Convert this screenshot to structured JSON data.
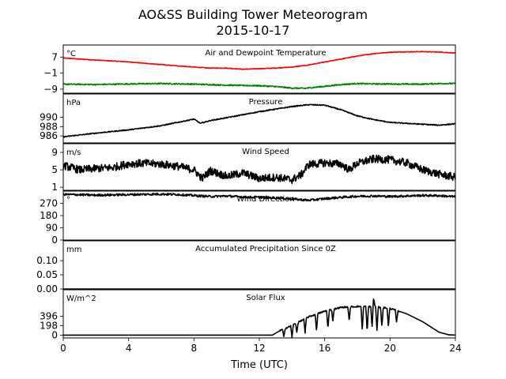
{
  "chart": {
    "title_line1": "AO&SS Building Tower Meteorogram",
    "title_line2": "2015-10-17",
    "xlabel": "Time (UTC)"
  },
  "chart_data": {
    "type": "line",
    "x_range": [
      0,
      24
    ],
    "x_ticks": [
      0,
      4,
      8,
      12,
      16,
      20,
      24
    ],
    "xlabel": "Time (UTC)",
    "panels": [
      {
        "id": "temperature",
        "title": "Air and Dewpoint Temperature",
        "unit": "°C",
        "ylim": [
          -11,
          13
        ],
        "ticks": [
          -9,
          -1,
          7
        ],
        "series": [
          {
            "key": "air",
            "color": "#ff0000",
            "noise": 0.15,
            "points": [
              [
                0,
                6.5
              ],
              [
                2,
                5.5
              ],
              [
                4,
                4.6
              ],
              [
                6,
                3.2
              ],
              [
                8,
                2
              ],
              [
                9,
                1.5
              ],
              [
                10,
                1.5
              ],
              [
                11,
                0.9
              ],
              [
                12,
                1.2
              ],
              [
                13,
                1.5
              ],
              [
                14,
                2
              ],
              [
                15,
                3
              ],
              [
                16,
                4.5
              ],
              [
                17,
                6
              ],
              [
                18,
                7.5
              ],
              [
                19,
                8.7
              ],
              [
                20,
                9.4
              ],
              [
                21,
                9.6
              ],
              [
                22,
                9.7
              ],
              [
                23,
                9.5
              ],
              [
                24,
                9
              ]
            ]
          },
          {
            "key": "dewpoint",
            "color": "#008000",
            "noise": 0.3,
            "points": [
              [
                0,
                -6.5
              ],
              [
                2,
                -6.7
              ],
              [
                4,
                -6.4
              ],
              [
                6,
                -6.2
              ],
              [
                8,
                -6.5
              ],
              [
                10,
                -7
              ],
              [
                12,
                -7.3
              ],
              [
                13,
                -7.7
              ],
              [
                14,
                -8.5
              ],
              [
                14.8,
                -8.6
              ],
              [
                15,
                -8.4
              ],
              [
                16,
                -7.6
              ],
              [
                17,
                -6.7
              ],
              [
                18,
                -6.2
              ],
              [
                19,
                -6.4
              ],
              [
                20,
                -6.4
              ],
              [
                21,
                -6.5
              ],
              [
                22,
                -6.5
              ],
              [
                23,
                -6.2
              ],
              [
                24,
                -6.2
              ]
            ]
          }
        ]
      },
      {
        "id": "pressure",
        "title": "Pressure",
        "unit": "hPa",
        "ylim": [
          984.5,
          995
        ],
        "ticks": [
          986,
          988,
          990
        ],
        "series": [
          {
            "key": "pressure",
            "color": "#000000",
            "noise": 0.1,
            "points": [
              [
                0,
                985.8
              ],
              [
                2,
                986.6
              ],
              [
                4,
                987.3
              ],
              [
                6,
                988.2
              ],
              [
                7,
                988.9
              ],
              [
                8,
                989.6
              ],
              [
                8.4,
                988.7
              ],
              [
                9,
                989.3
              ],
              [
                10,
                989.9
              ],
              [
                12,
                991.2
              ],
              [
                14,
                992.3
              ],
              [
                15,
                992.7
              ],
              [
                16,
                992.6
              ],
              [
                17,
                991.6
              ],
              [
                18,
                990.3
              ],
              [
                19,
                989.5
              ],
              [
                20,
                988.9
              ],
              [
                22,
                988.5
              ],
              [
                23,
                988.3
              ],
              [
                24,
                988.6
              ]
            ]
          }
        ]
      },
      {
        "id": "wind_speed",
        "title": "Wind Speed",
        "unit": "m/s",
        "ylim": [
          0.3,
          11
        ],
        "ticks": [
          1,
          5,
          9
        ],
        "series": [
          {
            "key": "speed",
            "color": "#000000",
            "noise": 0.9,
            "points": [
              [
                0,
                6
              ],
              [
                1,
                5
              ],
              [
                2,
                5.3
              ],
              [
                3,
                5.5
              ],
              [
                4,
                6.4
              ],
              [
                5,
                6.5
              ],
              [
                6,
                6.3
              ],
              [
                7,
                5.8
              ],
              [
                8,
                5
              ],
              [
                8.5,
                3
              ],
              [
                9,
                4.8
              ],
              [
                10,
                3.5
              ],
              [
                11,
                4.3
              ],
              [
                12,
                3
              ],
              [
                13,
                3.3
              ],
              [
                14,
                2.7
              ],
              [
                14.6,
                4
              ],
              [
                15,
                6.2
              ],
              [
                16,
                6.6
              ],
              [
                17,
                6.3
              ],
              [
                17.5,
                5
              ],
              [
                18,
                6.5
              ],
              [
                19,
                7.5
              ],
              [
                20,
                7.3
              ],
              [
                21,
                6.6
              ],
              [
                22,
                5
              ],
              [
                23,
                4
              ],
              [
                24,
                3.3
              ]
            ]
          }
        ]
      },
      {
        "id": "wind_direction",
        "title": "Wind Direction",
        "unit": "°",
        "ylim": [
          0,
          360
        ],
        "ticks": [
          0,
          90,
          180,
          270
        ],
        "series": [
          {
            "key": "direction",
            "color": "#000000",
            "noise": 8,
            "points": [
              [
                0,
                336
              ],
              [
                2,
                330
              ],
              [
                4,
                334
              ],
              [
                6,
                338
              ],
              [
                7,
                335
              ],
              [
                8,
                327
              ],
              [
                9,
                320
              ],
              [
                10,
                324
              ],
              [
                11,
                316
              ],
              [
                12,
                314
              ],
              [
                13,
                310
              ],
              [
                14,
                302
              ],
              [
                15,
                292
              ],
              [
                16,
                304
              ],
              [
                17,
                314
              ],
              [
                18,
                322
              ],
              [
                19,
                324
              ],
              [
                20,
                320
              ],
              [
                21,
                324
              ],
              [
                22,
                328
              ],
              [
                23,
                326
              ],
              [
                24,
                318
              ]
            ]
          }
        ]
      },
      {
        "id": "precipitation",
        "title": "Accumulated Precipitation Since 0Z",
        "unit": "mm",
        "ylim": [
          0,
          0.17
        ],
        "ticks": [
          0.0,
          0.05,
          0.1
        ],
        "tick_labels": [
          "0.00",
          "0.05",
          "0.10"
        ],
        "series": [
          {
            "key": "precip",
            "color": "#000000",
            "noise": 0,
            "points": [
              [
                0,
                0
              ],
              [
                24,
                0
              ]
            ]
          }
        ]
      },
      {
        "id": "solar",
        "title": "Solar Flux",
        "unit": "W/m^2",
        "ylim": [
          -60,
          950
        ],
        "ticks": [
          0,
          198,
          396
        ],
        "series": [
          {
            "key": "solar",
            "color": "#000000",
            "noise": 0,
            "points": [
              [
                0,
                0
              ],
              [
                12.8,
                0
              ],
              [
                13.3,
                100
              ],
              [
                14,
                200
              ],
              [
                15,
                380
              ],
              [
                16,
                500
              ],
              [
                17,
                580
              ],
              [
                18,
                600
              ],
              [
                19,
                600
              ],
              [
                20,
                560
              ],
              [
                21,
                450
              ],
              [
                22,
                280
              ],
              [
                23,
                60
              ],
              [
                23.6,
                5
              ],
              [
                24,
                0
              ]
            ],
            "spikes": [
              [
                13.5,
                -180
              ],
              [
                14,
                -250
              ],
              [
                14.3,
                -200
              ],
              [
                14.8,
                -300
              ],
              [
                15.5,
                -350
              ],
              [
                16.2,
                -400
              ],
              [
                16.5,
                -250
              ],
              [
                17.5,
                -300
              ],
              [
                18.3,
                -500
              ],
              [
                18.6,
                -550
              ],
              [
                18.9,
                -450
              ],
              [
                19,
                180
              ],
              [
                19.2,
                -500
              ],
              [
                19.5,
                -420
              ],
              [
                19.9,
                -400
              ],
              [
                20.4,
                -250
              ]
            ]
          }
        ]
      }
    ]
  }
}
